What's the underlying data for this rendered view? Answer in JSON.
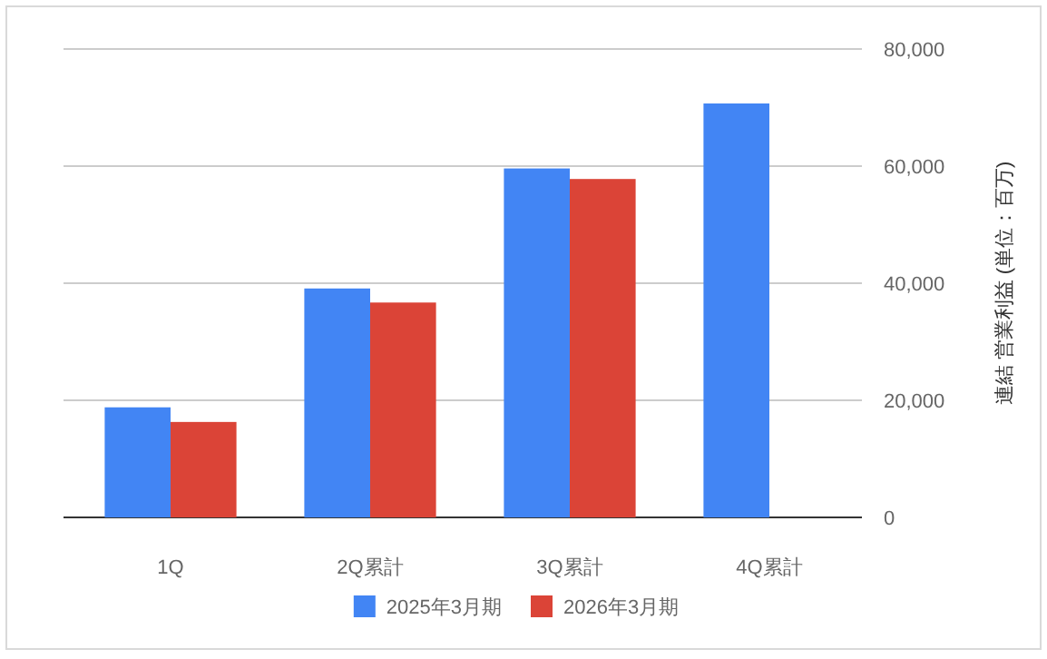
{
  "chart_data": {
    "type": "bar",
    "ylabel": "連結 営業利益 (単位：百万)",
    "categories": [
      "1Q",
      "2Q累計",
      "3Q累計",
      "4Q累計"
    ],
    "series": [
      {
        "name": "2025年3月期",
        "color": "#4285f4",
        "values": [
          18800,
          39100,
          59600,
          70700
        ]
      },
      {
        "name": "2026年3月期",
        "color": "#db4437",
        "values": [
          16300,
          36700,
          57800,
          null
        ]
      }
    ],
    "ylim": [
      0,
      80000
    ],
    "yticks": [
      0,
      {
        "value": 20000,
        "label": "20,000"
      },
      {
        "value": 40000,
        "label": "40,000"
      },
      {
        "value": 60000,
        "label": "60,000"
      },
      {
        "value": 80000,
        "label": "80,000"
      }
    ],
    "grid": "y",
    "legend": "bottom"
  }
}
